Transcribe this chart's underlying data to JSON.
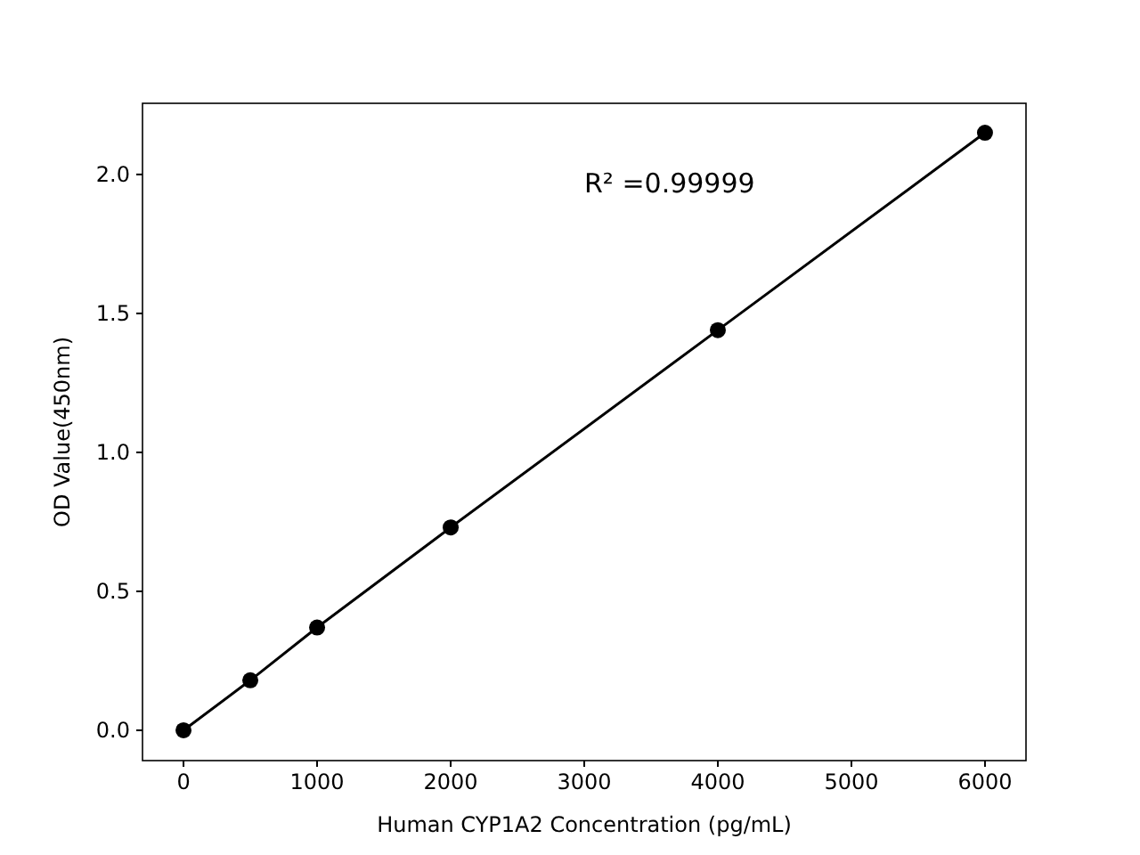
{
  "chart_data": {
    "type": "line",
    "xlabel": "Human CYP1A2 Concentration (pg/mL)",
    "ylabel": "OD Value(450nm)",
    "x": [
      0,
      500,
      1000,
      2000,
      4000,
      6000
    ],
    "series": [
      {
        "color": "#000000",
        "values": [
          0,
          0.18,
          0.37,
          0.73,
          1.44,
          2.15
        ]
      }
    ],
    "xlim": [
      -307,
      6307
    ],
    "xticks": [
      0,
      1000,
      2000,
      3000,
      4000,
      5000,
      6000
    ],
    "ylim": [
      -0.109,
      2.256
    ],
    "yticks": [
      {
        "value": 0,
        "label": "0.0"
      },
      {
        "value": 0.5,
        "label": "0.5"
      },
      {
        "value": 1,
        "label": "1.0"
      },
      {
        "value": 1.5,
        "label": "1.5"
      },
      {
        "value": 2,
        "label": "2.0"
      }
    ],
    "marker": "circle",
    "line_style": "solid",
    "annotations": [
      "R² =0.99999"
    ]
  }
}
